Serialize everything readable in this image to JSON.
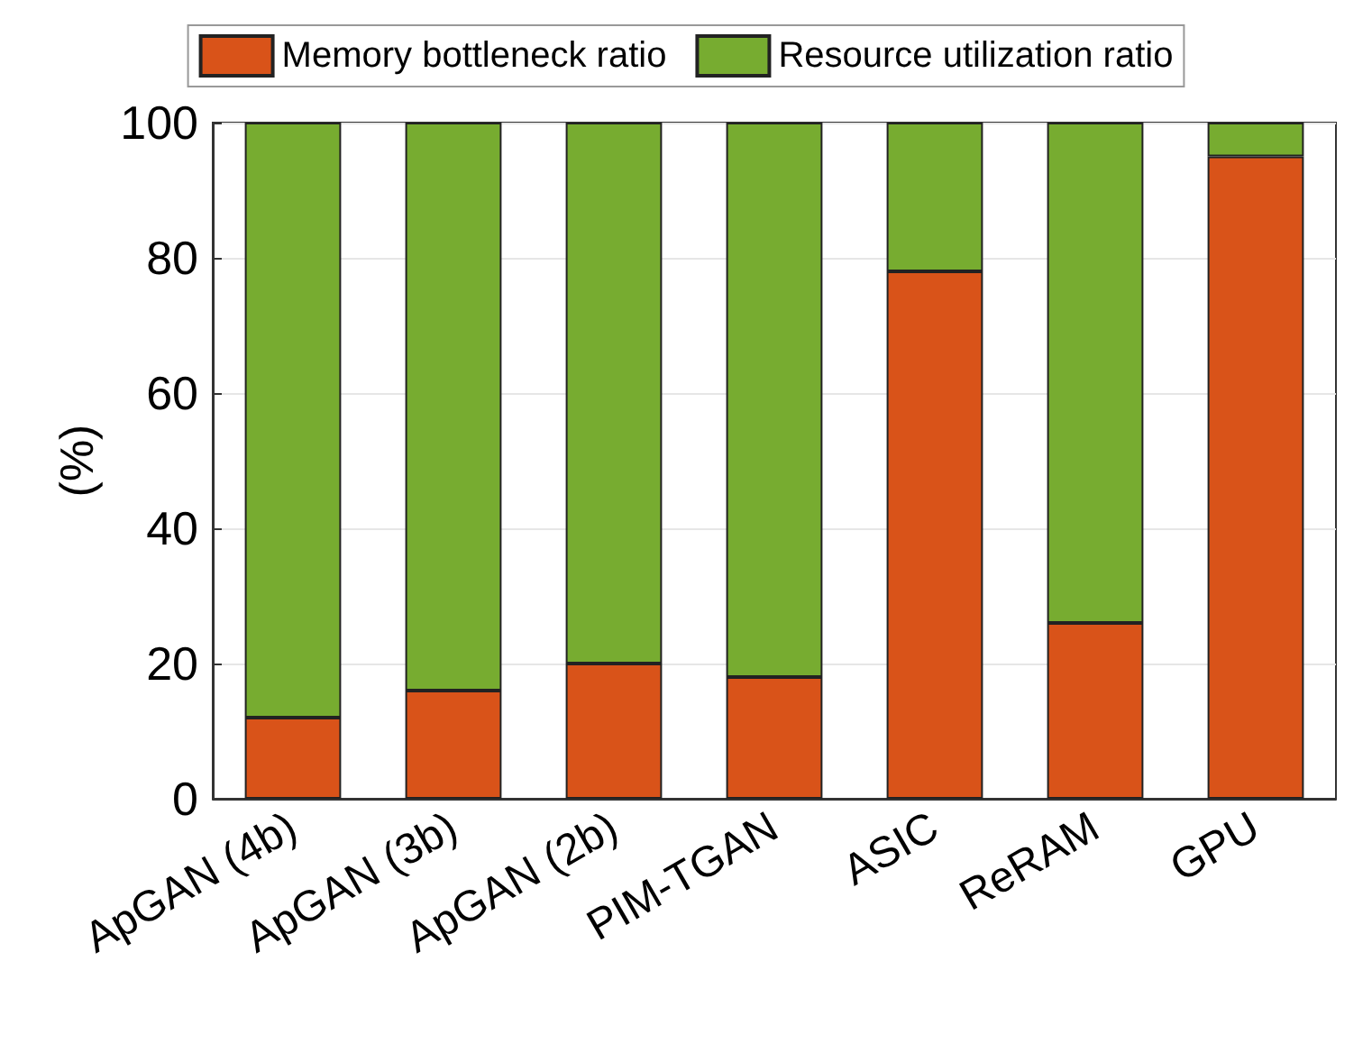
{
  "chart_data": {
    "type": "bar",
    "ylabel": "(%)",
    "categories": [
      "ApGAN (4b)",
      "ApGAN (3b)",
      "ApGAN (2b)",
      "PIM-TGAN",
      "ASIC",
      "ReRAM",
      "GPU"
    ],
    "stacked": true,
    "series": [
      {
        "name": "Memory bottleneck ratio",
        "color": "#d95319",
        "values": [
          12,
          16,
          20,
          18,
          78,
          26,
          95
        ]
      },
      {
        "name": "Resource utilization ratio",
        "color": "#77ac30",
        "values": [
          88,
          84,
          80,
          82,
          22,
          74,
          5
        ]
      }
    ],
    "ylim": [
      0,
      100
    ],
    "yticks": [
      0,
      20,
      40,
      60,
      80,
      100
    ],
    "grid": "y",
    "legend": "top"
  }
}
